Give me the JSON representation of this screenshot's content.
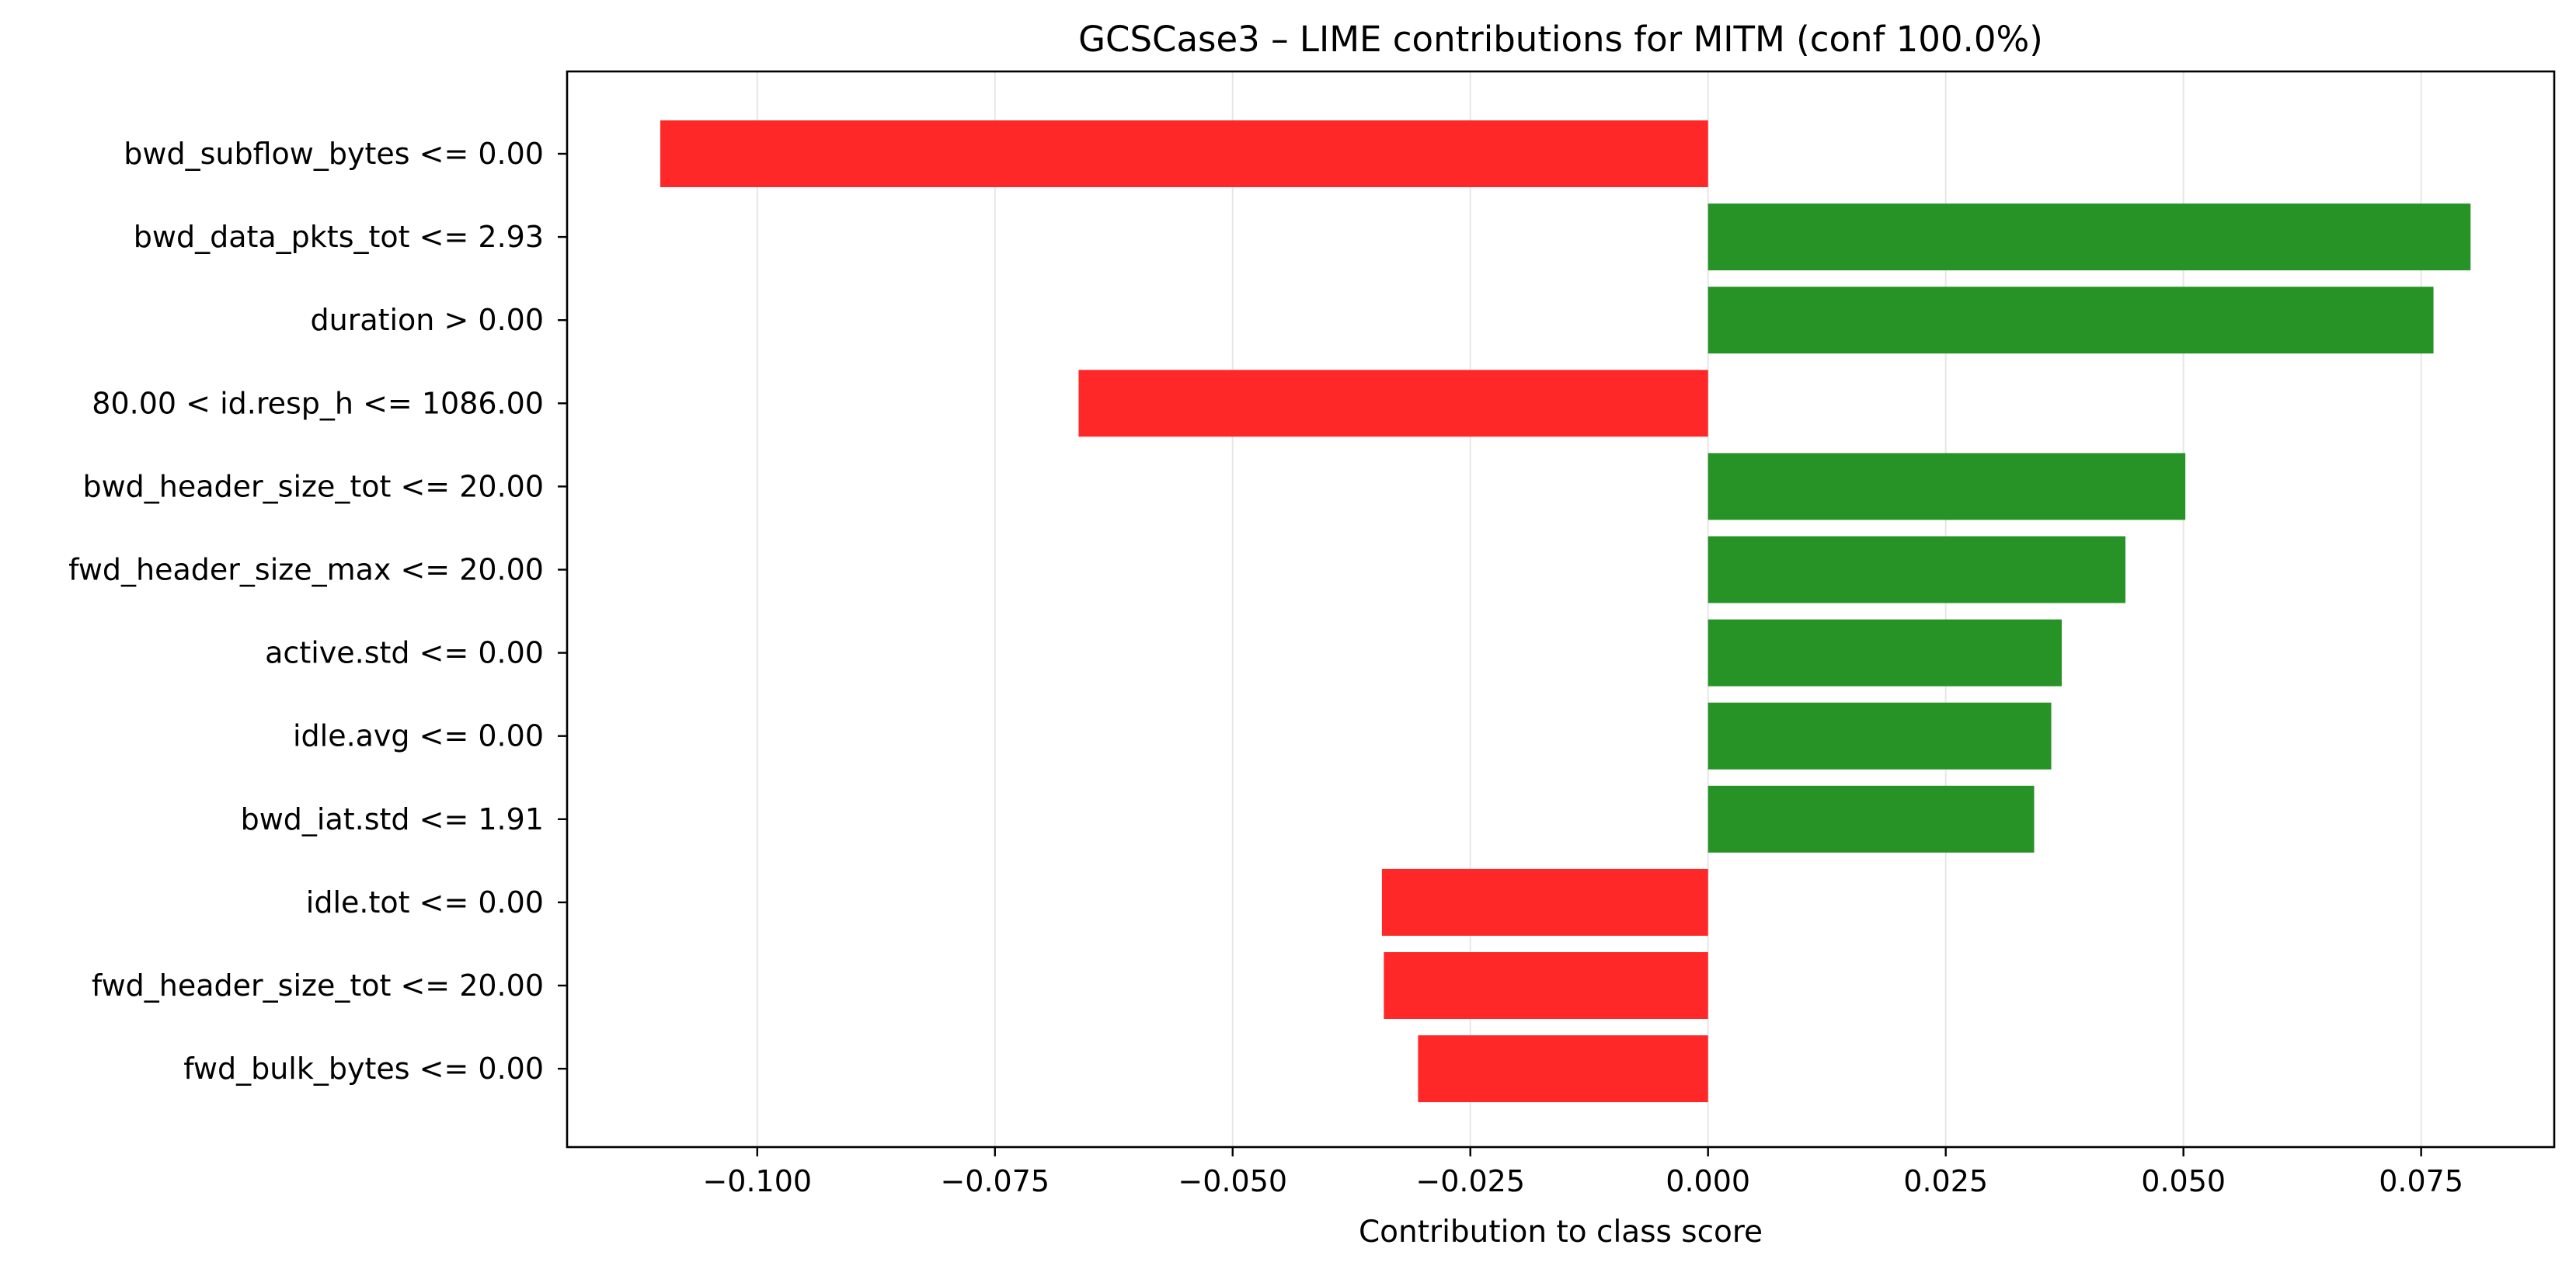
{
  "chart_data": {
    "type": "bar",
    "orientation": "horizontal",
    "title": "GCSCase3 – LIME contributions for MITM (conf 100.0%)",
    "xlabel": "Contribution to class score",
    "ylabel": "",
    "xlim": [
      -0.12,
      0.089
    ],
    "xticks": [
      {
        "value": -0.1,
        "label": "−0.100"
      },
      {
        "value": -0.075,
        "label": "−0.075"
      },
      {
        "value": -0.05,
        "label": "−0.050"
      },
      {
        "value": -0.025,
        "label": "−0.025"
      },
      {
        "value": 0.0,
        "label": "0.000"
      },
      {
        "value": 0.025,
        "label": "0.025"
      },
      {
        "value": 0.05,
        "label": "0.050"
      },
      {
        "value": 0.075,
        "label": "0.075"
      }
    ],
    "categories": [
      "bwd_subflow_bytes <= 0.00",
      "bwd_data_pkts_tot <= 2.93",
      "duration > 0.00",
      "80.00 < id.resp_h <= 1086.00",
      "bwd_header_size_tot <= 20.00",
      "fwd_header_size_max <= 20.00",
      "active.std <= 0.00",
      "idle.avg <= 0.00",
      "bwd_iat.std <= 1.91",
      "idle.tot <= 0.00",
      "fwd_header_size_tot <= 20.00",
      "fwd_bulk_bytes <= 0.00"
    ],
    "values": [
      -0.1102,
      0.0802,
      0.0763,
      -0.0662,
      0.0502,
      0.0439,
      0.0372,
      0.0361,
      0.0343,
      -0.0343,
      -0.0341,
      -0.0305
    ],
    "grid": {
      "x": true,
      "y": false
    },
    "colors": {
      "positive": "#279327",
      "negative": "#ff2828",
      "grid": "#e6e6e6",
      "axis": "#000000"
    }
  }
}
